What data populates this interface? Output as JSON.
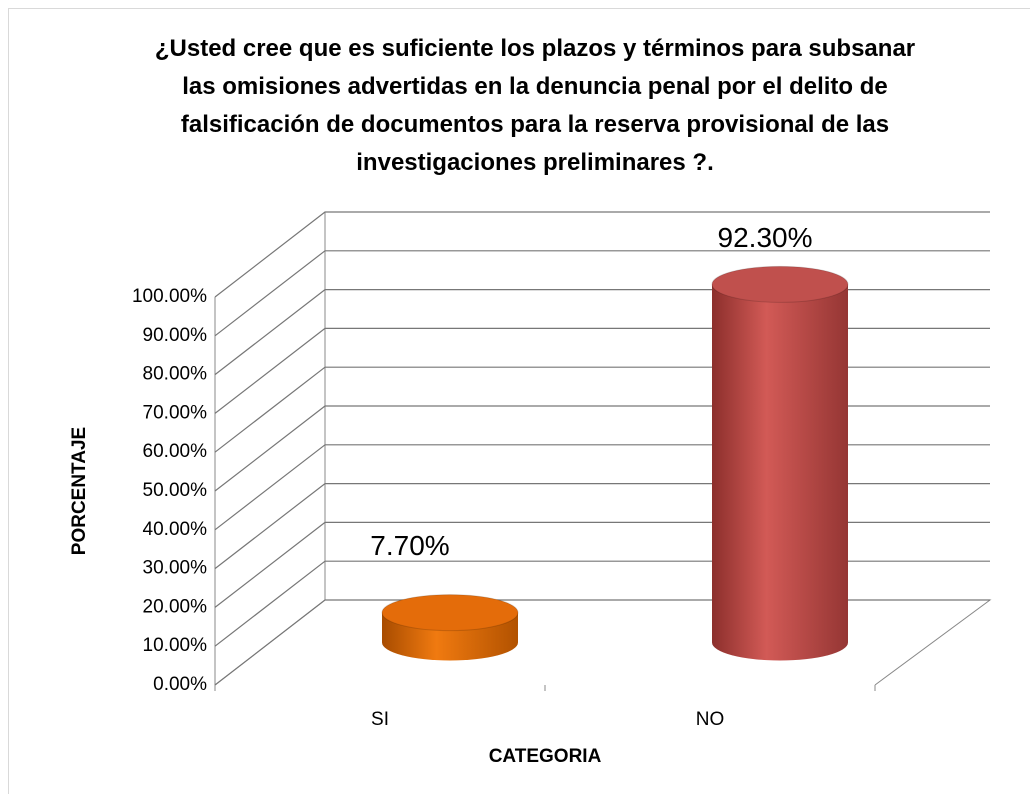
{
  "chart_data": {
    "type": "bar3d",
    "title": "¿Usted cree que es suficiente los plazos y términos para subsanar las omisiones advertidas en la denuncia penal por el delito de falsificación de documentos para la reserva provisional de las investigaciones preliminares ?.",
    "x_label": "CATEGORIA",
    "y_label": "PORCENTAJE",
    "categories": [
      "SI",
      "NO"
    ],
    "values": [
      7.7,
      92.3
    ],
    "value_labels": [
      "7.70%",
      "92.30%"
    ],
    "colors": [
      "#e46c0a",
      "#c0504d"
    ],
    "ylim": [
      0,
      100
    ],
    "yticks": [
      {
        "value": 0,
        "label": "0.00%"
      },
      {
        "value": 10,
        "label": "10.00%"
      },
      {
        "value": 20,
        "label": "20.00%"
      },
      {
        "value": 30,
        "label": "30.00%"
      },
      {
        "value": 40,
        "label": "40.00%"
      },
      {
        "value": 50,
        "label": "50.00%"
      },
      {
        "value": 60,
        "label": "60.00%"
      },
      {
        "value": 70,
        "label": "70.00%"
      },
      {
        "value": 80,
        "label": "80.00%"
      },
      {
        "value": 90,
        "label": "90.00%"
      },
      {
        "value": 100,
        "label": "100.00%"
      }
    ],
    "grid": true
  }
}
